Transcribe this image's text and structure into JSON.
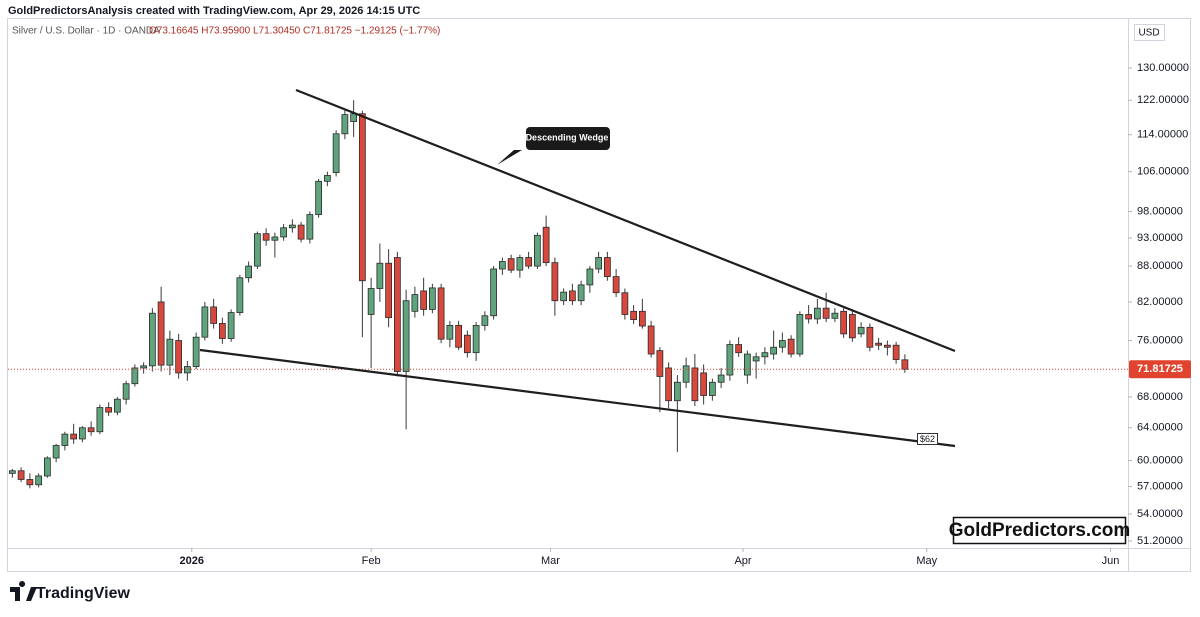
{
  "header": "GoldPredictorsAnalysis created with TradingView.com, Apr 29, 2026 14:15 UTC",
  "footer_brand": "TradingView",
  "chart_data": {
    "type": "candlestick",
    "title": "Silver / U.S. Dollar · 1D · OANDA",
    "ohlc_legend": "O73.16645 H73.95900 L71.30450 C71.81725 −1.29125 (−1.77%)",
    "currency": "USD",
    "watermark": "GoldPredictors.com",
    "annotations": [
      "Descending Wedge",
      "$62"
    ],
    "log_scale": true,
    "up_color": "#5fa47d",
    "down_color": "#d7493d",
    "last_price_color": "#e0442f",
    "xlim": [
      -0.5,
      127.5
    ],
    "xticks": [
      {
        "value": 20.5,
        "label": "2026"
      },
      {
        "value": 41,
        "label": "Feb"
      },
      {
        "value": 61.5,
        "label": "Mar"
      },
      {
        "value": 83.5,
        "label": "Apr"
      },
      {
        "value": 104.5,
        "label": "May"
      },
      {
        "value": 125.5,
        "label": "Jun"
      }
    ],
    "ylim": [
      50.5,
      142.9
    ],
    "yticks": [
      {
        "value": 51.2,
        "label": "51.20000"
      },
      {
        "value": 54,
        "label": "54.00000"
      },
      {
        "value": 57,
        "label": "57.00000"
      },
      {
        "value": 60,
        "label": "60.00000"
      },
      {
        "value": 64,
        "label": "64.00000"
      },
      {
        "value": 68,
        "label": "68.00000"
      },
      {
        "value": 76,
        "label": "76.00000"
      },
      {
        "value": 82,
        "label": "82.00000"
      },
      {
        "value": 88,
        "label": "88.00000"
      },
      {
        "value": 93,
        "label": "93.00000"
      },
      {
        "value": 98,
        "label": "98.00000"
      },
      {
        "value": 106,
        "label": "106.00000"
      },
      {
        "value": 114,
        "label": "114.00000"
      },
      {
        "value": 122,
        "label": "122.00000"
      },
      {
        "value": 130,
        "label": "130.00000"
      }
    ],
    "open": [
      58.5,
      58.8,
      57.8,
      57.2,
      58.2,
      60.3,
      61.8,
      63.2,
      62.6,
      64.0,
      63.5,
      66.6,
      66.0,
      67.7,
      69.8,
      72.0,
      72.3,
      82.0,
      72.4,
      76.0,
      71.3,
      72.2,
      76.5,
      81.2,
      78.6,
      76.3,
      80.3,
      86.0,
      88.0,
      93.8,
      92.6,
      93.2,
      94.9,
      95.4,
      92.8,
      97.4,
      104.0,
      105.8,
      114.2,
      117.0,
      118.8,
      80.0,
      84.2,
      88.5,
      89.5,
      71.5,
      80.5,
      83.8,
      80.8,
      84.3,
      76.2,
      78.3,
      76.8,
      74.2,
      78.3,
      79.8,
      87.5,
      89.3,
      87.3,
      89.5,
      88.0,
      95.0,
      88.6,
      82.2,
      83.8,
      82.2,
      84.8,
      87.5,
      89.5,
      86.2,
      83.5,
      80.5,
      80.5,
      78.2,
      74.5,
      72.0,
      67.5,
      70.0,
      72.0,
      71.3,
      68.2,
      70.0,
      71.0,
      75.4,
      71.0,
      73.0,
      73.6,
      74.0,
      75.0,
      76.2,
      74.0,
      80.0,
      79.3,
      81.0,
      79.4,
      80.5,
      80.0,
      77.0,
      78.0,
      75.6,
      75.3,
      75.3,
      73.16645
    ],
    "high": [
      59.0,
      59.2,
      58.5,
      58.5,
      60.5,
      62.0,
      63.5,
      64.5,
      64.2,
      64.8,
      67.0,
      67.3,
      68.0,
      70.2,
      72.5,
      72.8,
      81.0,
      84.5,
      77.5,
      77.0,
      73.0,
      77.2,
      82.0,
      82.5,
      79.5,
      80.8,
      86.5,
      88.8,
      94.2,
      94.8,
      94.0,
      95.6,
      96.5,
      96.0,
      98.0,
      104.5,
      106.0,
      115.0,
      120.0,
      122.0,
      119.5,
      86.0,
      92.0,
      91.0,
      90.5,
      84.0,
      84.5,
      86.0,
      85.0,
      85.0,
      79.0,
      79.0,
      77.5,
      78.8,
      80.5,
      88.0,
      89.5,
      90.0,
      90.0,
      90.5,
      94.0,
      97.2,
      89.5,
      84.2,
      85.0,
      85.5,
      88.0,
      90.5,
      90.5,
      87.5,
      84.2,
      81.5,
      82.5,
      79.0,
      75.0,
      72.8,
      71.0,
      73.5,
      74.0,
      72.5,
      70.5,
      72.0,
      76.0,
      76.5,
      74.5,
      74.2,
      75.0,
      77.5,
      77.2,
      76.8,
      80.5,
      81.5,
      82.5,
      83.5,
      81.0,
      81.0,
      80.6,
      78.8,
      78.6,
      76.4,
      76.0,
      75.8,
      73.959
    ],
    "low": [
      58.0,
      57.5,
      56.8,
      56.9,
      58.0,
      59.8,
      61.2,
      62.0,
      62.2,
      63.0,
      63.2,
      65.5,
      65.6,
      67.0,
      69.4,
      71.2,
      71.5,
      71.5,
      71.0,
      70.5,
      70.2,
      71.8,
      76.0,
      77.8,
      75.5,
      75.8,
      79.8,
      85.2,
      87.5,
      91.6,
      89.5,
      92.5,
      94.0,
      92.2,
      92.0,
      96.8,
      103.0,
      105.0,
      113.0,
      113.5,
      76.5,
      72.0,
      82.0,
      78.0,
      70.8,
      63.8,
      79.5,
      79.8,
      80.2,
      75.6,
      75.0,
      74.6,
      73.5,
      73.0,
      77.5,
      79.2,
      86.5,
      86.8,
      86.0,
      87.5,
      87.5,
      88.0,
      79.8,
      81.5,
      81.5,
      81.5,
      83.5,
      86.8,
      85.5,
      82.8,
      79.2,
      78.5,
      77.8,
      73.5,
      66.0,
      66.5,
      61.0,
      69.2,
      66.8,
      67.0,
      67.5,
      69.2,
      70.2,
      73.6,
      69.8,
      70.5,
      72.5,
      73.2,
      74.2,
      73.5,
      73.6,
      78.6,
      78.5,
      78.8,
      78.8,
      76.4,
      75.8,
      76.5,
      74.4,
      74.6,
      73.8,
      72.6,
      71.3045
    ],
    "close": [
      58.8,
      57.8,
      57.2,
      58.2,
      60.3,
      61.8,
      63.2,
      62.6,
      64.0,
      63.5,
      66.6,
      66.0,
      67.7,
      69.8,
      72.0,
      72.3,
      80.2,
      72.4,
      76.2,
      71.3,
      72.2,
      76.5,
      81.2,
      78.6,
      76.3,
      80.3,
      86.0,
      88.0,
      93.8,
      92.6,
      93.2,
      94.9,
      95.4,
      92.8,
      97.4,
      104.0,
      105.2,
      114.2,
      118.6,
      118.8,
      85.5,
      84.2,
      88.5,
      79.5,
      71.5,
      82.2,
      83.2,
      80.8,
      84.3,
      76.2,
      78.3,
      75.0,
      74.2,
      78.3,
      79.8,
      87.5,
      88.8,
      87.3,
      89.5,
      88.0,
      93.5,
      88.6,
      82.2,
      83.6,
      82.2,
      84.8,
      87.5,
      89.5,
      86.2,
      83.5,
      80.0,
      79.2,
      78.2,
      74.0,
      70.8,
      67.5,
      70.0,
      72.3,
      67.5,
      68.2,
      70.0,
      71.0,
      75.4,
      74.2,
      74.0,
      73.6,
      74.2,
      75.0,
      76.0,
      74.0,
      80.0,
      79.3,
      81.0,
      79.4,
      80.2,
      77.0,
      76.4,
      78.0,
      75.0,
      75.3,
      75.0,
      73.2,
      71.81725
    ]
  }
}
